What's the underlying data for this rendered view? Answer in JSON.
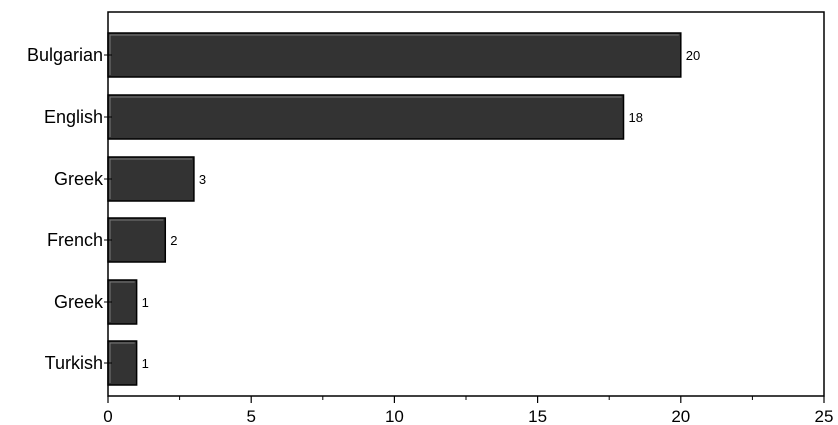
{
  "chart_data": {
    "type": "bar",
    "orientation": "horizontal",
    "categories": [
      "Bulgarian",
      "English",
      "Greek",
      "French",
      "Greek",
      "Turkish"
    ],
    "values": [
      20,
      18,
      3,
      2,
      1,
      1
    ],
    "data_labels": [
      "20",
      "18",
      "3",
      "2",
      "1",
      "1"
    ],
    "xlim": [
      0,
      25
    ],
    "x_ticks": [
      0,
      5,
      10,
      15,
      20,
      25
    ],
    "x_tick_labels": [
      "0",
      "5",
      "10",
      "15",
      "20",
      "25"
    ],
    "grid": false,
    "legend": "none",
    "colors": {
      "bar_fill": "#333333",
      "bar_stroke": "#000000",
      "bar_highlight": "#ffffff",
      "axis": "#000000"
    }
  }
}
